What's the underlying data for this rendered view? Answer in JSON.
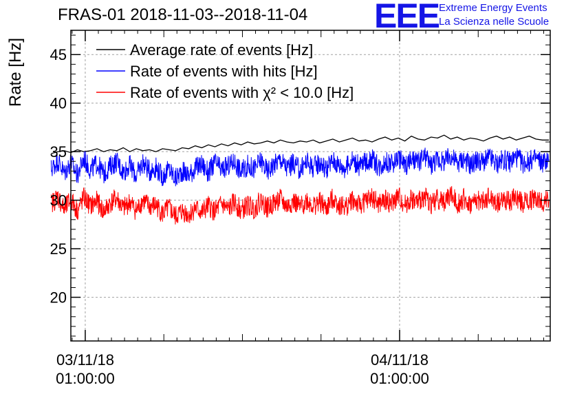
{
  "header": {
    "title": "FRAS-01 2018-11-03--2018-11-04",
    "logo_text": "EEE",
    "logo_line1": "Extreme Energy Events",
    "logo_line2": "La Scienza nelle Scuole"
  },
  "chart_data": {
    "type": "line",
    "title": "FRAS-01 2018-11-03--2018-11-04",
    "xlabel": "",
    "ylabel": "Rate [Hz]",
    "ylim": [
      15.5,
      47.5
    ],
    "xlim_hours": [
      -1.1,
      35.5
    ],
    "yticks": [
      20,
      25,
      30,
      35,
      40,
      45
    ],
    "grid": true,
    "xticks": [
      {
        "hours": 0,
        "date": "03/11/18",
        "time": "01:00:00"
      },
      {
        "hours": 24,
        "date": "04/11/18",
        "time": "01:00:00"
      }
    ],
    "legend_position": "top-left",
    "series": [
      {
        "name": "Average rate of events [Hz]",
        "color": "#000000",
        "x_hours": [
          -2.6,
          -2.1,
          -1.6,
          -1.1,
          -0.6,
          -0.1,
          0.4,
          0.9,
          1.4,
          1.9,
          2.4,
          2.9,
          3.4,
          3.9,
          4.4,
          4.9,
          5.4,
          5.9,
          6.4,
          6.9,
          7.4,
          7.9,
          8.4,
          8.9,
          9.4,
          9.9,
          10.4,
          10.9,
          11.4,
          11.9,
          12.4,
          12.9,
          13.4,
          13.9,
          14.4,
          14.9,
          15.4,
          15.9,
          16.4,
          16.9,
          17.4,
          17.9,
          18.4,
          18.9,
          19.4,
          19.9,
          20.4,
          20.9,
          21.4,
          21.9,
          22.4,
          22.9,
          23.4,
          23.9,
          24.4,
          24.9,
          25.4,
          25.9,
          26.4,
          26.9,
          27.4,
          27.9,
          28.4,
          28.9,
          29.4,
          29.9,
          30.4,
          30.9,
          31.4,
          31.9,
          32.4,
          32.9,
          33.4,
          33.9,
          34.4,
          34.9,
          35.4
        ],
        "values": [
          34.8,
          35.0,
          35.1,
          34.9,
          35.2,
          35.0,
          35.1,
          35.3,
          35.0,
          35.2,
          35.1,
          35.4,
          35.0,
          35.3,
          35.1,
          35.2,
          35.0,
          35.3,
          35.2,
          35.1,
          35.4,
          35.3,
          35.6,
          35.4,
          35.7,
          35.5,
          35.8,
          35.6,
          35.9,
          35.7,
          36.0,
          35.8,
          35.9,
          36.1,
          35.9,
          36.2,
          36.0,
          35.9,
          36.1,
          36.0,
          36.2,
          35.9,
          36.1,
          36.3,
          36.0,
          36.2,
          36.4,
          36.1,
          36.2,
          36.0,
          36.3,
          36.5,
          36.2,
          36.4,
          36.1,
          36.6,
          36.3,
          36.2,
          36.5,
          36.4,
          36.7,
          36.3,
          36.5,
          36.2,
          36.4,
          36.3,
          36.1,
          36.4,
          36.6,
          36.3,
          36.5,
          36.2,
          36.4,
          36.6,
          36.3,
          36.2,
          36.2
        ]
      },
      {
        "name": "Rate of events with hits [Hz]",
        "color": "#0000ff",
        "x_hours": [
          -2.6,
          -2.1,
          -1.6,
          -1.1,
          -0.6,
          -0.1,
          0.4,
          0.9,
          1.4,
          1.9,
          2.4,
          2.9,
          3.4,
          3.9,
          4.4,
          4.9,
          5.4,
          5.9,
          6.4,
          6.9,
          7.4,
          7.9,
          8.4,
          8.9,
          9.4,
          9.9,
          10.4,
          10.9,
          11.4,
          11.9,
          12.4,
          12.9,
          13.4,
          13.9,
          14.4,
          14.9,
          15.4,
          15.9,
          16.4,
          16.9,
          17.4,
          17.9,
          18.4,
          18.9,
          19.4,
          19.9,
          20.4,
          20.9,
          21.4,
          21.9,
          22.4,
          22.9,
          23.4,
          23.9,
          24.4,
          24.9,
          25.4,
          25.9,
          26.4,
          26.9,
          27.4,
          27.9,
          28.4,
          28.9,
          29.4,
          29.9,
          30.4,
          30.9,
          31.4,
          31.9,
          32.4,
          32.9,
          33.4,
          33.9,
          34.4,
          34.9,
          35.4
        ],
        "values": [
          33.2,
          34.1,
          32.8,
          33.9,
          32.6,
          34.3,
          33.1,
          33.8,
          32.7,
          33.5,
          34.0,
          32.9,
          33.6,
          32.5,
          33.9,
          33.0,
          33.4,
          32.4,
          33.2,
          32.2,
          33.0,
          32.6,
          33.3,
          33.7,
          32.8,
          33.9,
          33.1,
          33.5,
          34.0,
          32.9,
          33.6,
          33.2,
          34.1,
          33.0,
          33.7,
          34.2,
          33.3,
          33.8,
          33.1,
          34.0,
          33.4,
          33.9,
          33.2,
          34.1,
          33.6,
          33.3,
          34.2,
          33.5,
          33.9,
          34.3,
          33.4,
          34.0,
          33.7,
          34.4,
          33.6,
          34.1,
          33.8,
          34.5,
          33.7,
          34.2,
          33.9,
          34.6,
          33.8,
          34.3,
          33.6,
          34.1,
          33.9,
          34.4,
          33.7,
          34.2,
          33.9,
          34.5,
          33.8,
          34.0,
          34.3,
          33.9,
          34.2
        ]
      },
      {
        "name": "Rate of events with χ² < 10.0 [Hz]",
        "color": "#ff0000",
        "x_hours": [
          -2.6,
          -2.1,
          -1.6,
          -1.1,
          -0.6,
          -0.1,
          0.4,
          0.9,
          1.4,
          1.9,
          2.4,
          2.9,
          3.4,
          3.9,
          4.4,
          4.9,
          5.4,
          5.9,
          6.4,
          6.9,
          7.4,
          7.9,
          8.4,
          8.9,
          9.4,
          9.9,
          10.4,
          10.9,
          11.4,
          11.9,
          12.4,
          12.9,
          13.4,
          13.9,
          14.4,
          14.9,
          15.4,
          15.9,
          16.4,
          16.9,
          17.4,
          17.9,
          18.4,
          18.9,
          19.4,
          19.9,
          20.4,
          20.9,
          21.4,
          21.9,
          22.4,
          22.9,
          23.4,
          23.9,
          24.4,
          24.9,
          25.4,
          25.9,
          26.4,
          26.9,
          27.4,
          27.9,
          28.4,
          28.9,
          29.4,
          29.9,
          30.4,
          30.9,
          31.4,
          31.9,
          32.4,
          32.9,
          33.4,
          33.9,
          34.4,
          34.9,
          35.4
        ],
        "values": [
          29.6,
          30.4,
          29.0,
          30.1,
          28.9,
          30.3,
          29.4,
          29.9,
          28.8,
          29.7,
          30.2,
          29.1,
          29.8,
          28.9,
          30.0,
          29.3,
          29.5,
          28.6,
          29.2,
          28.3,
          28.9,
          28.5,
          29.2,
          28.7,
          29.4,
          28.8,
          29.6,
          29.0,
          29.8,
          28.9,
          29.5,
          29.1,
          30.0,
          29.2,
          29.7,
          30.1,
          29.3,
          29.9,
          29.2,
          30.0,
          29.4,
          29.8,
          29.1,
          30.2,
          29.5,
          29.3,
          30.1,
          29.4,
          29.9,
          30.3,
          29.5,
          30.0,
          29.6,
          30.4,
          29.5,
          30.1,
          29.7,
          30.5,
          29.6,
          30.2,
          29.8,
          30.6,
          29.7,
          30.1,
          29.5,
          30.0,
          29.8,
          30.3,
          29.6,
          30.1,
          29.8,
          30.4,
          29.7,
          29.9,
          30.2,
          29.8,
          30.0
        ]
      }
    ]
  }
}
